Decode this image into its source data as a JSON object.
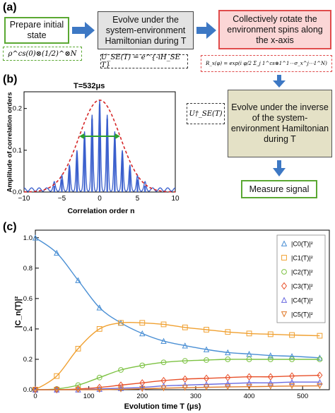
{
  "panel_a": {
    "label": "(a)",
    "prepare_box": "Prepare initial state",
    "evolve_box": "Evolve under the system-environment Hamiltonian during T",
    "rotate_box": "Collectively rotate the environment spins along the x-axis",
    "evolve_inverse_box": "Evolve under the inverse of the system-environment Hamiltonian during T",
    "measure_box": "Measure signal",
    "initial_state_formula": "ρ^cs(0)⊗(1/2)^⊗N",
    "unitary_formula": "U_SE(T) = e^{-iH_SE T}",
    "rotation_formula": "R_x(φ) = exp(i φ/2 Σ_j 1^cs⊗1^1⋯σ_x^j⋯1^N)",
    "inverse_unitary_formula": "U†_SE(T)",
    "colors": {
      "green": "#5aa832",
      "red": "#e04b4b",
      "blue_arrow": "#3d78c4",
      "gray": "#e3e3e3",
      "olive": "#e4e1c6"
    }
  },
  "panel_b": {
    "label": "(b)",
    "title": "T=532μs",
    "ylabel": "Amplitude of correlation orders",
    "xlabel": "Correlation order n"
  },
  "panel_c": {
    "label": "(c)",
    "ylabel": "|C_n(T)|²",
    "xlabel": "Evolution time T (μs)",
    "legend": [
      "|C0(T)|²",
      "|C1(T)|²",
      "|C2(T)|²",
      "|C3(T)|²",
      "|C4(T)|²",
      "|C5(T)|²"
    ]
  },
  "chart_data": [
    {
      "type": "bar",
      "title": "T=532μs",
      "xlabel": "Correlation order n",
      "ylabel": "Amplitude of correlation orders",
      "xlim": [
        -10,
        10
      ],
      "ylim": [
        0,
        0.24
      ],
      "xticks": [
        -10,
        -5,
        0,
        5,
        10
      ],
      "yticks": [
        0.0,
        0.1,
        0.2
      ],
      "x": [
        -6,
        -5,
        -4,
        -3,
        -2,
        -1,
        0,
        1,
        2,
        3,
        4,
        5,
        6
      ],
      "values": [
        0.015,
        0.03,
        0.055,
        0.09,
        0.135,
        0.175,
        0.21,
        0.175,
        0.135,
        0.09,
        0.055,
        0.03,
        0.015
      ],
      "gaussian_envelope": {
        "amplitude": 0.22,
        "center": 0,
        "sigma": 2.7
      },
      "colors": {
        "bars": "#3a5fcd",
        "envelope": "#d62728",
        "width_arrow": "#2ca02c"
      }
    },
    {
      "type": "line",
      "xlabel": "Evolution time T (μs)",
      "ylabel": "|C_n(T)|²",
      "xlim": [
        0,
        550
      ],
      "ylim": [
        0,
        1.05
      ],
      "xticks": [
        0,
        100,
        200,
        300,
        400,
        500
      ],
      "yticks": [
        0.0,
        0.2,
        0.4,
        0.6,
        0.8,
        1.0
      ],
      "series": [
        {
          "name": "|C0(T)|²",
          "marker": "triangle-up",
          "color": "#4a8fd4",
          "x": [
            0,
            40,
            80,
            120,
            160,
            200,
            240,
            280,
            320,
            360,
            400,
            440,
            480,
            532
          ],
          "y": [
            1.0,
            0.9,
            0.72,
            0.54,
            0.44,
            0.37,
            0.32,
            0.29,
            0.265,
            0.245,
            0.235,
            0.225,
            0.22,
            0.21
          ]
        },
        {
          "name": "|C1(T)|²",
          "marker": "square",
          "color": "#f0a030",
          "x": [
            0,
            40,
            80,
            120,
            160,
            200,
            240,
            280,
            320,
            360,
            400,
            440,
            480,
            532
          ],
          "y": [
            0.0,
            0.09,
            0.27,
            0.4,
            0.44,
            0.44,
            0.43,
            0.41,
            0.395,
            0.38,
            0.37,
            0.365,
            0.36,
            0.355
          ]
        },
        {
          "name": "|C2(T)|²",
          "marker": "circle",
          "color": "#7cc242",
          "x": [
            0,
            40,
            80,
            120,
            160,
            200,
            240,
            280,
            320,
            360,
            400,
            440,
            480,
            532
          ],
          "y": [
            0.0,
            0.005,
            0.03,
            0.08,
            0.13,
            0.16,
            0.18,
            0.19,
            0.195,
            0.2,
            0.2,
            0.2,
            0.2,
            0.2
          ]
        },
        {
          "name": "|C3(T)|²",
          "marker": "diamond",
          "color": "#e8502a",
          "x": [
            0,
            40,
            80,
            120,
            160,
            200,
            240,
            280,
            320,
            360,
            400,
            440,
            480,
            532
          ],
          "y": [
            0.0,
            0.0,
            0.005,
            0.015,
            0.03,
            0.045,
            0.06,
            0.07,
            0.075,
            0.08,
            0.085,
            0.085,
            0.09,
            0.095
          ]
        },
        {
          "name": "|C4(T)|²",
          "marker": "triangle-up",
          "color": "#6a6ae0",
          "x": [
            0,
            40,
            80,
            120,
            160,
            200,
            240,
            280,
            320,
            360,
            400,
            440,
            480,
            532
          ],
          "y": [
            0.0,
            0.0,
            0.0,
            0.005,
            0.01,
            0.015,
            0.025,
            0.03,
            0.035,
            0.04,
            0.045,
            0.045,
            0.05,
            0.05
          ]
        },
        {
          "name": "|C5(T)|²",
          "marker": "triangle-down",
          "color": "#e07a2a",
          "x": [
            0,
            40,
            80,
            120,
            160,
            200,
            240,
            280,
            320,
            360,
            400,
            440,
            480,
            532
          ],
          "y": [
            0.0,
            0.0,
            0.0,
            0.0,
            0.003,
            0.006,
            0.01,
            0.013,
            0.016,
            0.018,
            0.02,
            0.022,
            0.024,
            0.025
          ]
        }
      ],
      "legend_position": "top-right"
    }
  ]
}
